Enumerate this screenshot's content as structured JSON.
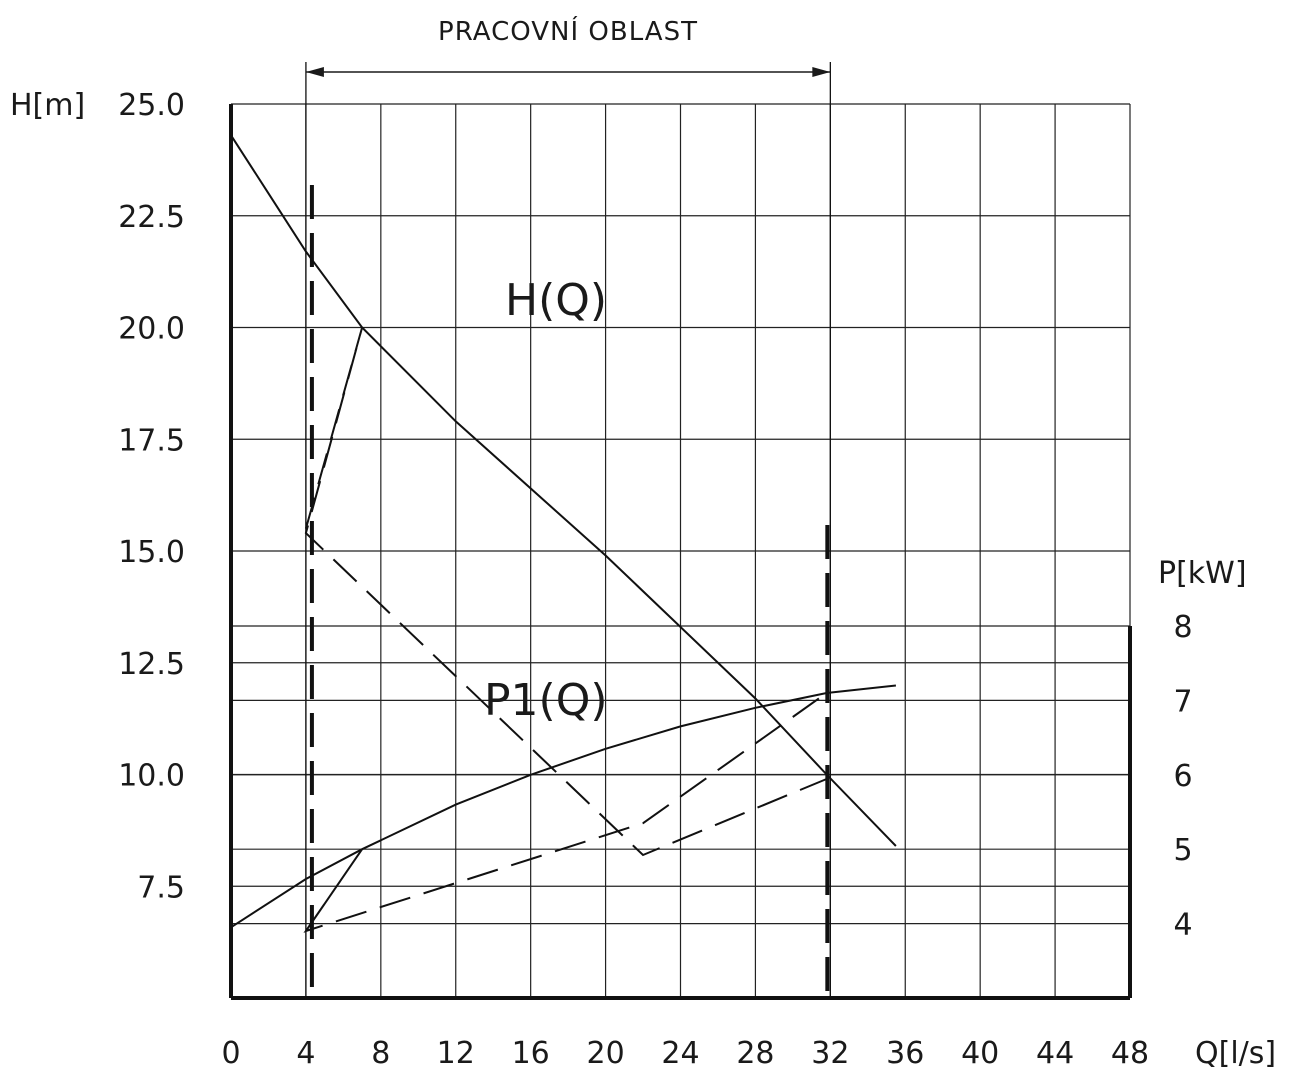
{
  "chart_data": {
    "type": "line",
    "title": "",
    "region": {
      "label": "PRACOVNÍ OBLAST",
      "q_from": 4,
      "q_to": 32
    },
    "x_axis": {
      "label": "Q[l/s]",
      "range": [
        0,
        48
      ],
      "ticks": [
        0,
        4,
        8,
        12,
        16,
        20,
        24,
        28,
        32,
        36,
        40,
        44,
        48
      ],
      "tick_labels": [
        "0",
        "4",
        "8",
        "12",
        "16",
        "20",
        "24",
        "28",
        "32",
        "36",
        "40",
        "44",
        "48"
      ]
    },
    "y_axis_left": {
      "label": "H[m]",
      "range": [
        7.5,
        25.0
      ],
      "ticks": [
        7.5,
        10,
        12.5,
        15,
        17.5,
        20,
        22.5,
        25
      ],
      "tick_labels": [
        "7.5",
        "10.0",
        "12.5",
        "15.0",
        "17.5",
        "20.0",
        "22.5",
        "25.0"
      ]
    },
    "y_axis_right": {
      "label": "P[kW]",
      "range": [
        3,
        8
      ],
      "ticks": [
        4,
        5,
        6,
        7,
        8
      ],
      "tick_labels": [
        "4",
        "5",
        "6",
        "7",
        "8"
      ]
    },
    "grid": true,
    "series": [
      {
        "name": "H(Q)",
        "axis": "left",
        "style": "solid",
        "x": [
          0,
          2,
          4,
          7,
          12,
          20,
          28,
          31.8,
          35.5
        ],
        "y": [
          24.3,
          23.0,
          21.7,
          20.0,
          17.9,
          14.9,
          11.7,
          10.0,
          8.4
        ]
      },
      {
        "name": "",
        "axis": "left",
        "style": "dashed",
        "x": [
          4,
          7,
          4,
          22,
          31.8
        ],
        "y": [
          15.5,
          20.0,
          15.4,
          8.2,
          9.9
        ]
      },
      {
        "name": "P1(Q)",
        "axis": "right",
        "style": "solid",
        "x": [
          0,
          4,
          7,
          12,
          16,
          20,
          24,
          28,
          31.8,
          35.5
        ],
        "y": [
          3.95,
          4.6,
          5.0,
          5.6,
          6.0,
          6.35,
          6.65,
          6.9,
          7.1,
          7.2
        ]
      },
      {
        "name": "",
        "axis": "right",
        "style": "dashed",
        "x": [
          4,
          7,
          4,
          22,
          31.8
        ],
        "y": [
          3.9,
          5.0,
          3.9,
          5.35,
          7.1
        ]
      }
    ],
    "vertical_markers": [
      4,
      32
    ]
  }
}
